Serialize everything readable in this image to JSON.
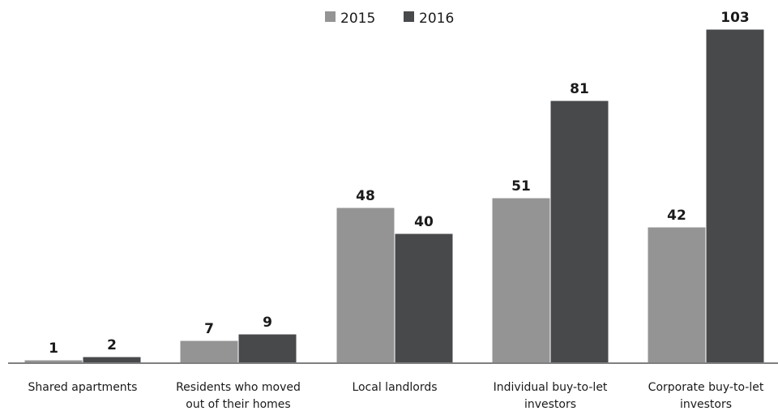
{
  "chart_data": {
    "type": "bar",
    "title": "",
    "xlabel": "",
    "ylabel": "",
    "ylim": [
      0,
      103
    ],
    "grid": false,
    "legend_position": "top-center",
    "categories": [
      [
        "Shared apartments"
      ],
      [
        "Residents who moved",
        "out of their homes"
      ],
      [
        "Local landlords"
      ],
      [
        "Individual buy-to-let",
        "investors"
      ],
      [
        "Corporate buy-to-let",
        "investors"
      ]
    ],
    "series": [
      {
        "name": "2015",
        "values": [
          1,
          7,
          48,
          51,
          42
        ],
        "color": "#949494"
      },
      {
        "name": "2016",
        "values": [
          2,
          9,
          40,
          81,
          103
        ],
        "color": "#48494b"
      }
    ]
  }
}
